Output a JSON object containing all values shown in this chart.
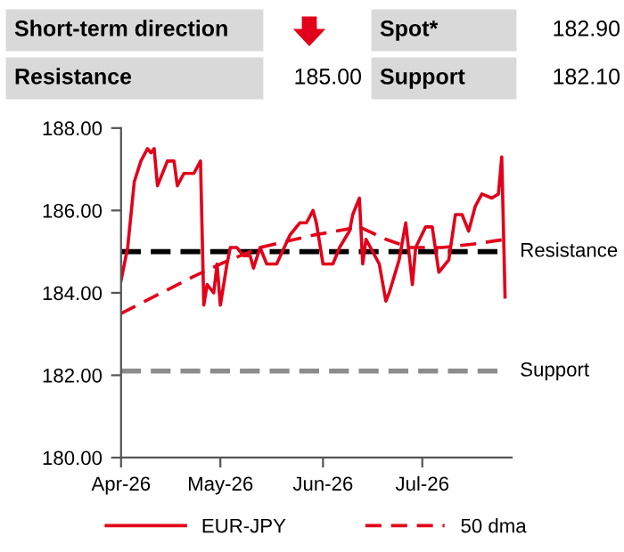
{
  "chart_data": {
    "type": "line",
    "annotations": [
      "Short-term direction",
      "Spot*",
      "182.90",
      "Resistance",
      "185.00",
      "Support",
      "182.10"
    ],
    "xlim": [
      "2026-04-01",
      "2026-07-28"
    ],
    "xticks": [
      {
        "value": "2026-04-01",
        "label": "Apr-26"
      },
      {
        "value": "2026-05-01",
        "label": "May-26"
      },
      {
        "value": "2026-06-01",
        "label": "Jun-26"
      },
      {
        "value": "2026-07-01",
        "label": "Jul-26"
      }
    ],
    "ylim": [
      180,
      188
    ],
    "yticks": [
      {
        "value": 180,
        "label": "180.00"
      },
      {
        "value": 182,
        "label": "182.00"
      },
      {
        "value": 184,
        "label": "184.00"
      },
      {
        "value": 186,
        "label": "186.00"
      },
      {
        "value": 188,
        "label": "188.00"
      }
    ],
    "series": [
      {
        "name": "EUR-JPY",
        "color": "#e2001a",
        "line_style": "solid",
        "x": [
          "2026-04-01",
          "2026-04-03",
          "2026-04-05",
          "2026-04-07",
          "2026-04-09",
          "2026-04-10",
          "2026-04-11",
          "2026-04-12",
          "2026-04-15",
          "2026-04-17",
          "2026-04-18",
          "2026-04-20",
          "2026-04-23",
          "2026-04-25",
          "2026-04-26",
          "2026-04-27",
          "2026-04-29",
          "2026-04-30",
          "2026-05-01",
          "2026-05-03",
          "2026-05-04",
          "2026-05-06",
          "2026-05-08",
          "2026-05-10",
          "2026-05-11",
          "2026-05-13",
          "2026-05-15",
          "2026-05-18",
          "2026-05-22",
          "2026-05-25",
          "2026-05-27",
          "2026-05-29",
          "2026-05-30",
          "2026-06-01",
          "2026-06-04",
          "2026-06-06",
          "2026-06-09",
          "2026-06-10",
          "2026-06-12",
          "2026-06-13",
          "2026-06-14",
          "2026-06-16",
          "2026-06-18",
          "2026-06-20",
          "2026-06-21",
          "2026-06-24",
          "2026-06-26",
          "2026-06-28",
          "2026-06-29",
          "2026-07-02",
          "2026-07-04",
          "2026-07-06",
          "2026-07-09",
          "2026-07-11",
          "2026-07-13",
          "2026-07-15",
          "2026-07-17",
          "2026-07-19",
          "2026-07-22",
          "2026-07-24",
          "2026-07-25",
          "2026-07-26"
        ],
        "values": [
          184.3,
          185.1,
          186.7,
          187.2,
          187.5,
          187.4,
          187.5,
          186.6,
          187.2,
          187.2,
          186.6,
          186.9,
          186.9,
          187.2,
          183.7,
          184.2,
          184.0,
          184.7,
          183.7,
          184.7,
          185.1,
          185.1,
          184.9,
          184.9,
          184.6,
          185.1,
          184.7,
          184.7,
          185.4,
          185.7,
          185.7,
          186.0,
          185.7,
          184.7,
          184.7,
          185.1,
          185.5,
          185.9,
          186.3,
          184.7,
          185.3,
          185.0,
          184.7,
          183.8,
          184.0,
          184.8,
          185.7,
          184.2,
          185.1,
          185.6,
          185.6,
          184.5,
          184.8,
          185.9,
          185.9,
          185.5,
          186.1,
          186.4,
          186.3,
          186.4,
          187.3,
          183.9
        ]
      },
      {
        "name": "50 dma",
        "color": "#e2001a",
        "line_style": "dashed",
        "x": [
          "2026-04-01",
          "2026-04-23",
          "2026-05-01",
          "2026-05-13",
          "2026-05-29",
          "2026-06-05",
          "2026-06-12",
          "2026-06-20",
          "2026-06-27",
          "2026-07-07",
          "2026-07-18",
          "2026-07-26"
        ],
        "values": [
          183.5,
          184.4,
          184.7,
          185.1,
          185.4,
          185.5,
          185.6,
          185.3,
          185.1,
          185.1,
          185.2,
          185.3
        ]
      }
    ],
    "ref_lines": [
      {
        "axis": "y",
        "value": 185,
        "label": "Resistance",
        "color": "#000000",
        "line_style": "dashed"
      },
      {
        "axis": "y",
        "value": 182.1,
        "label": "Support",
        "color": "#8c8c8c",
        "line_style": "dashed"
      }
    ],
    "legend": "bottom",
    "grid": false
  }
}
